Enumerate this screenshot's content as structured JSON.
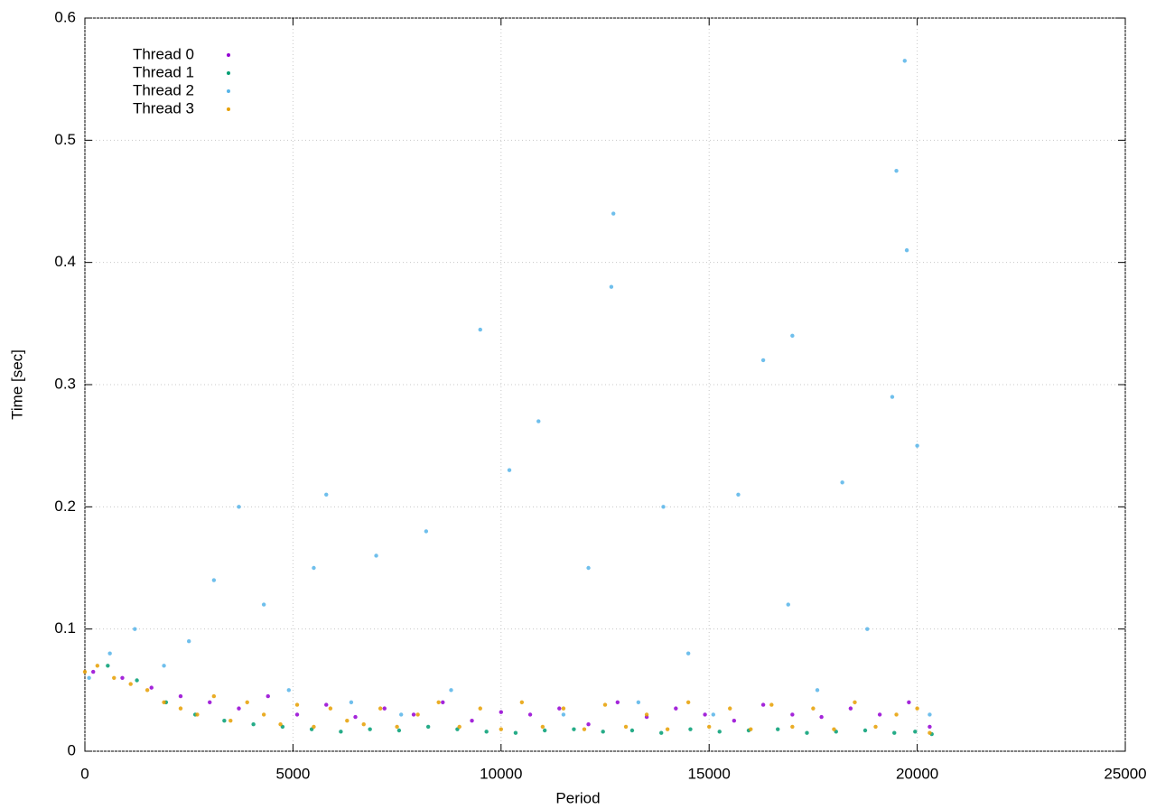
{
  "chart_data": {
    "type": "scatter",
    "x_label": "Period",
    "y_label": "Time [sec]",
    "xlim": [
      0,
      25000
    ],
    "xticks": [
      0,
      5000,
      10000,
      15000,
      20000,
      25000
    ],
    "ylim": [
      0,
      0.6
    ],
    "yticks": [
      0,
      0.1,
      0.2,
      0.3,
      0.4,
      0.5,
      0.6
    ],
    "grid": true,
    "legend": "top-left",
    "series": [
      {
        "name": "Thread 0",
        "color": "#9400d3",
        "x": [
          200,
          900,
          1600,
          2300,
          3000,
          3700,
          4400,
          5100,
          5800,
          6500,
          7200,
          7900,
          8600,
          9300,
          10000,
          10700,
          11400,
          12100,
          12800,
          13500,
          14200,
          14900,
          15600,
          16300,
          17000,
          17700,
          18400,
          19100,
          19800,
          20300
        ],
        "values": [
          0.065,
          0.06,
          0.052,
          0.045,
          0.04,
          0.035,
          0.045,
          0.03,
          0.038,
          0.028,
          0.035,
          0.03,
          0.04,
          0.025,
          0.032,
          0.03,
          0.035,
          0.022,
          0.04,
          0.028,
          0.035,
          0.03,
          0.025,
          0.038,
          0.03,
          0.028,
          0.035,
          0.03,
          0.04,
          0.02
        ]
      },
      {
        "name": "Thread 1",
        "color": "#009e73",
        "x": [
          550,
          1250,
          1950,
          2650,
          3350,
          4050,
          4750,
          5450,
          6150,
          6850,
          7550,
          8250,
          8950,
          9650,
          10350,
          11050,
          11750,
          12450,
          13150,
          13850,
          14550,
          15250,
          15950,
          16650,
          17350,
          18050,
          18750,
          19450,
          19950,
          20350
        ],
        "values": [
          0.07,
          0.058,
          0.04,
          0.03,
          0.025,
          0.022,
          0.02,
          0.018,
          0.016,
          0.018,
          0.017,
          0.02,
          0.018,
          0.016,
          0.015,
          0.017,
          0.018,
          0.016,
          0.017,
          0.015,
          0.018,
          0.016,
          0.017,
          0.018,
          0.015,
          0.016,
          0.017,
          0.015,
          0.016,
          0.014
        ]
      },
      {
        "name": "Thread 2",
        "color": "#56b4e9",
        "x": [
          100,
          600,
          1200,
          1900,
          2500,
          3100,
          3700,
          4300,
          4900,
          5500,
          5800,
          6400,
          7000,
          7600,
          8200,
          8800,
          9500,
          10200,
          10900,
          11500,
          12100,
          12650,
          12700,
          13300,
          13900,
          14500,
          15100,
          15700,
          16300,
          16900,
          17000,
          17600,
          18200,
          18800,
          19400,
          19500,
          19700,
          19750,
          20000,
          20300
        ],
        "values": [
          0.06,
          0.08,
          0.1,
          0.07,
          0.09,
          0.14,
          0.2,
          0.12,
          0.05,
          0.15,
          0.21,
          0.04,
          0.16,
          0.03,
          0.18,
          0.05,
          0.345,
          0.23,
          0.27,
          0.03,
          0.15,
          0.38,
          0.44,
          0.04,
          0.2,
          0.08,
          0.03,
          0.21,
          0.32,
          0.12,
          0.34,
          0.05,
          0.22,
          0.1,
          0.29,
          0.475,
          0.565,
          0.41,
          0.25,
          0.03
        ]
      },
      {
        "name": "Thread 3",
        "color": "#e69f00",
        "x": [
          0,
          300,
          700,
          1100,
          1500,
          1900,
          2300,
          2700,
          3100,
          3500,
          3900,
          4300,
          4700,
          5100,
          5500,
          5900,
          6300,
          6700,
          7100,
          7500,
          8000,
          8500,
          9000,
          9500,
          10000,
          10500,
          11000,
          11500,
          12000,
          12500,
          13000,
          13500,
          14000,
          14500,
          15000,
          15500,
          16000,
          16500,
          17000,
          17500,
          18000,
          18500,
          19000,
          19500,
          20000,
          20300
        ],
        "values": [
          0.065,
          0.07,
          0.06,
          0.055,
          0.05,
          0.04,
          0.035,
          0.03,
          0.045,
          0.025,
          0.04,
          0.03,
          0.022,
          0.038,
          0.02,
          0.035,
          0.025,
          0.022,
          0.035,
          0.02,
          0.03,
          0.04,
          0.02,
          0.035,
          0.018,
          0.04,
          0.02,
          0.035,
          0.018,
          0.038,
          0.02,
          0.03,
          0.018,
          0.04,
          0.02,
          0.035,
          0.018,
          0.038,
          0.02,
          0.035,
          0.018,
          0.04,
          0.02,
          0.03,
          0.035,
          0.015
        ]
      }
    ]
  }
}
